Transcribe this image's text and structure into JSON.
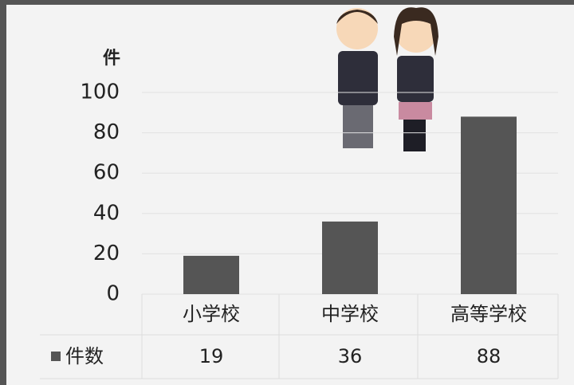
{
  "chart_data": {
    "type": "bar",
    "ylabel": "件",
    "categories": [
      "小学校",
      "中学校",
      "高等学校"
    ],
    "series": [
      {
        "name": "件数",
        "color": "#555555",
        "values": [
          19,
          36,
          88
        ]
      }
    ],
    "ylim": [
      0,
      100
    ],
    "yticks": [
      0,
      20,
      40,
      60,
      80,
      100
    ],
    "grid": true
  }
}
